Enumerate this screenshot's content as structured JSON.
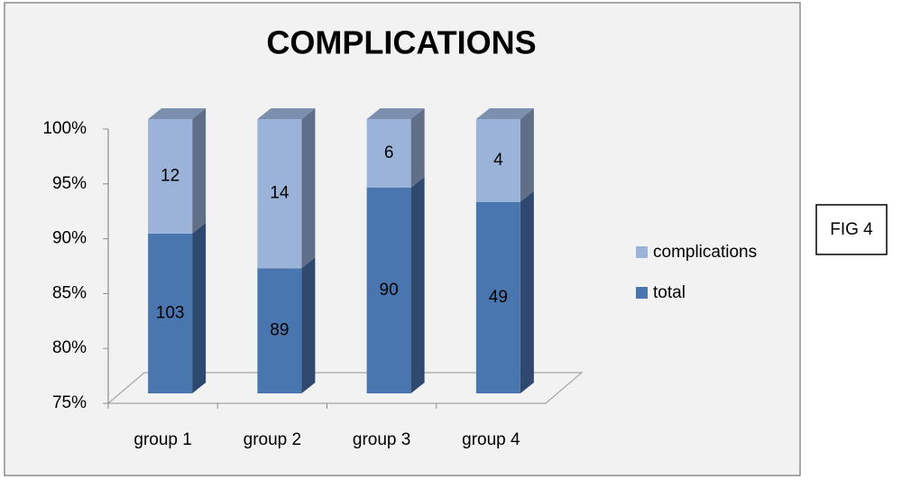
{
  "chart_data": {
    "type": "bar",
    "stacking": "percent",
    "title": "COMPLICATIONS",
    "categories": [
      "group 1",
      "group 2",
      "group 3",
      "group 4"
    ],
    "series": [
      {
        "name": "total",
        "color": "#4a76b0",
        "values": [
          103,
          89,
          90,
          49
        ]
      },
      {
        "name": "complications",
        "color": "#9bb3d9",
        "values": [
          12,
          14,
          6,
          4
        ]
      }
    ],
    "ylim": [
      75,
      100
    ],
    "yticks": [
      {
        "value": 75,
        "label": "75%"
      },
      {
        "value": 80,
        "label": "80%"
      },
      {
        "value": 85,
        "label": "85%"
      },
      {
        "value": 90,
        "label": "90%"
      },
      {
        "value": 95,
        "label": "95%"
      },
      {
        "value": 100,
        "label": "100%"
      }
    ],
    "grid": false,
    "legend": "right",
    "annotation": "FIG 4"
  }
}
